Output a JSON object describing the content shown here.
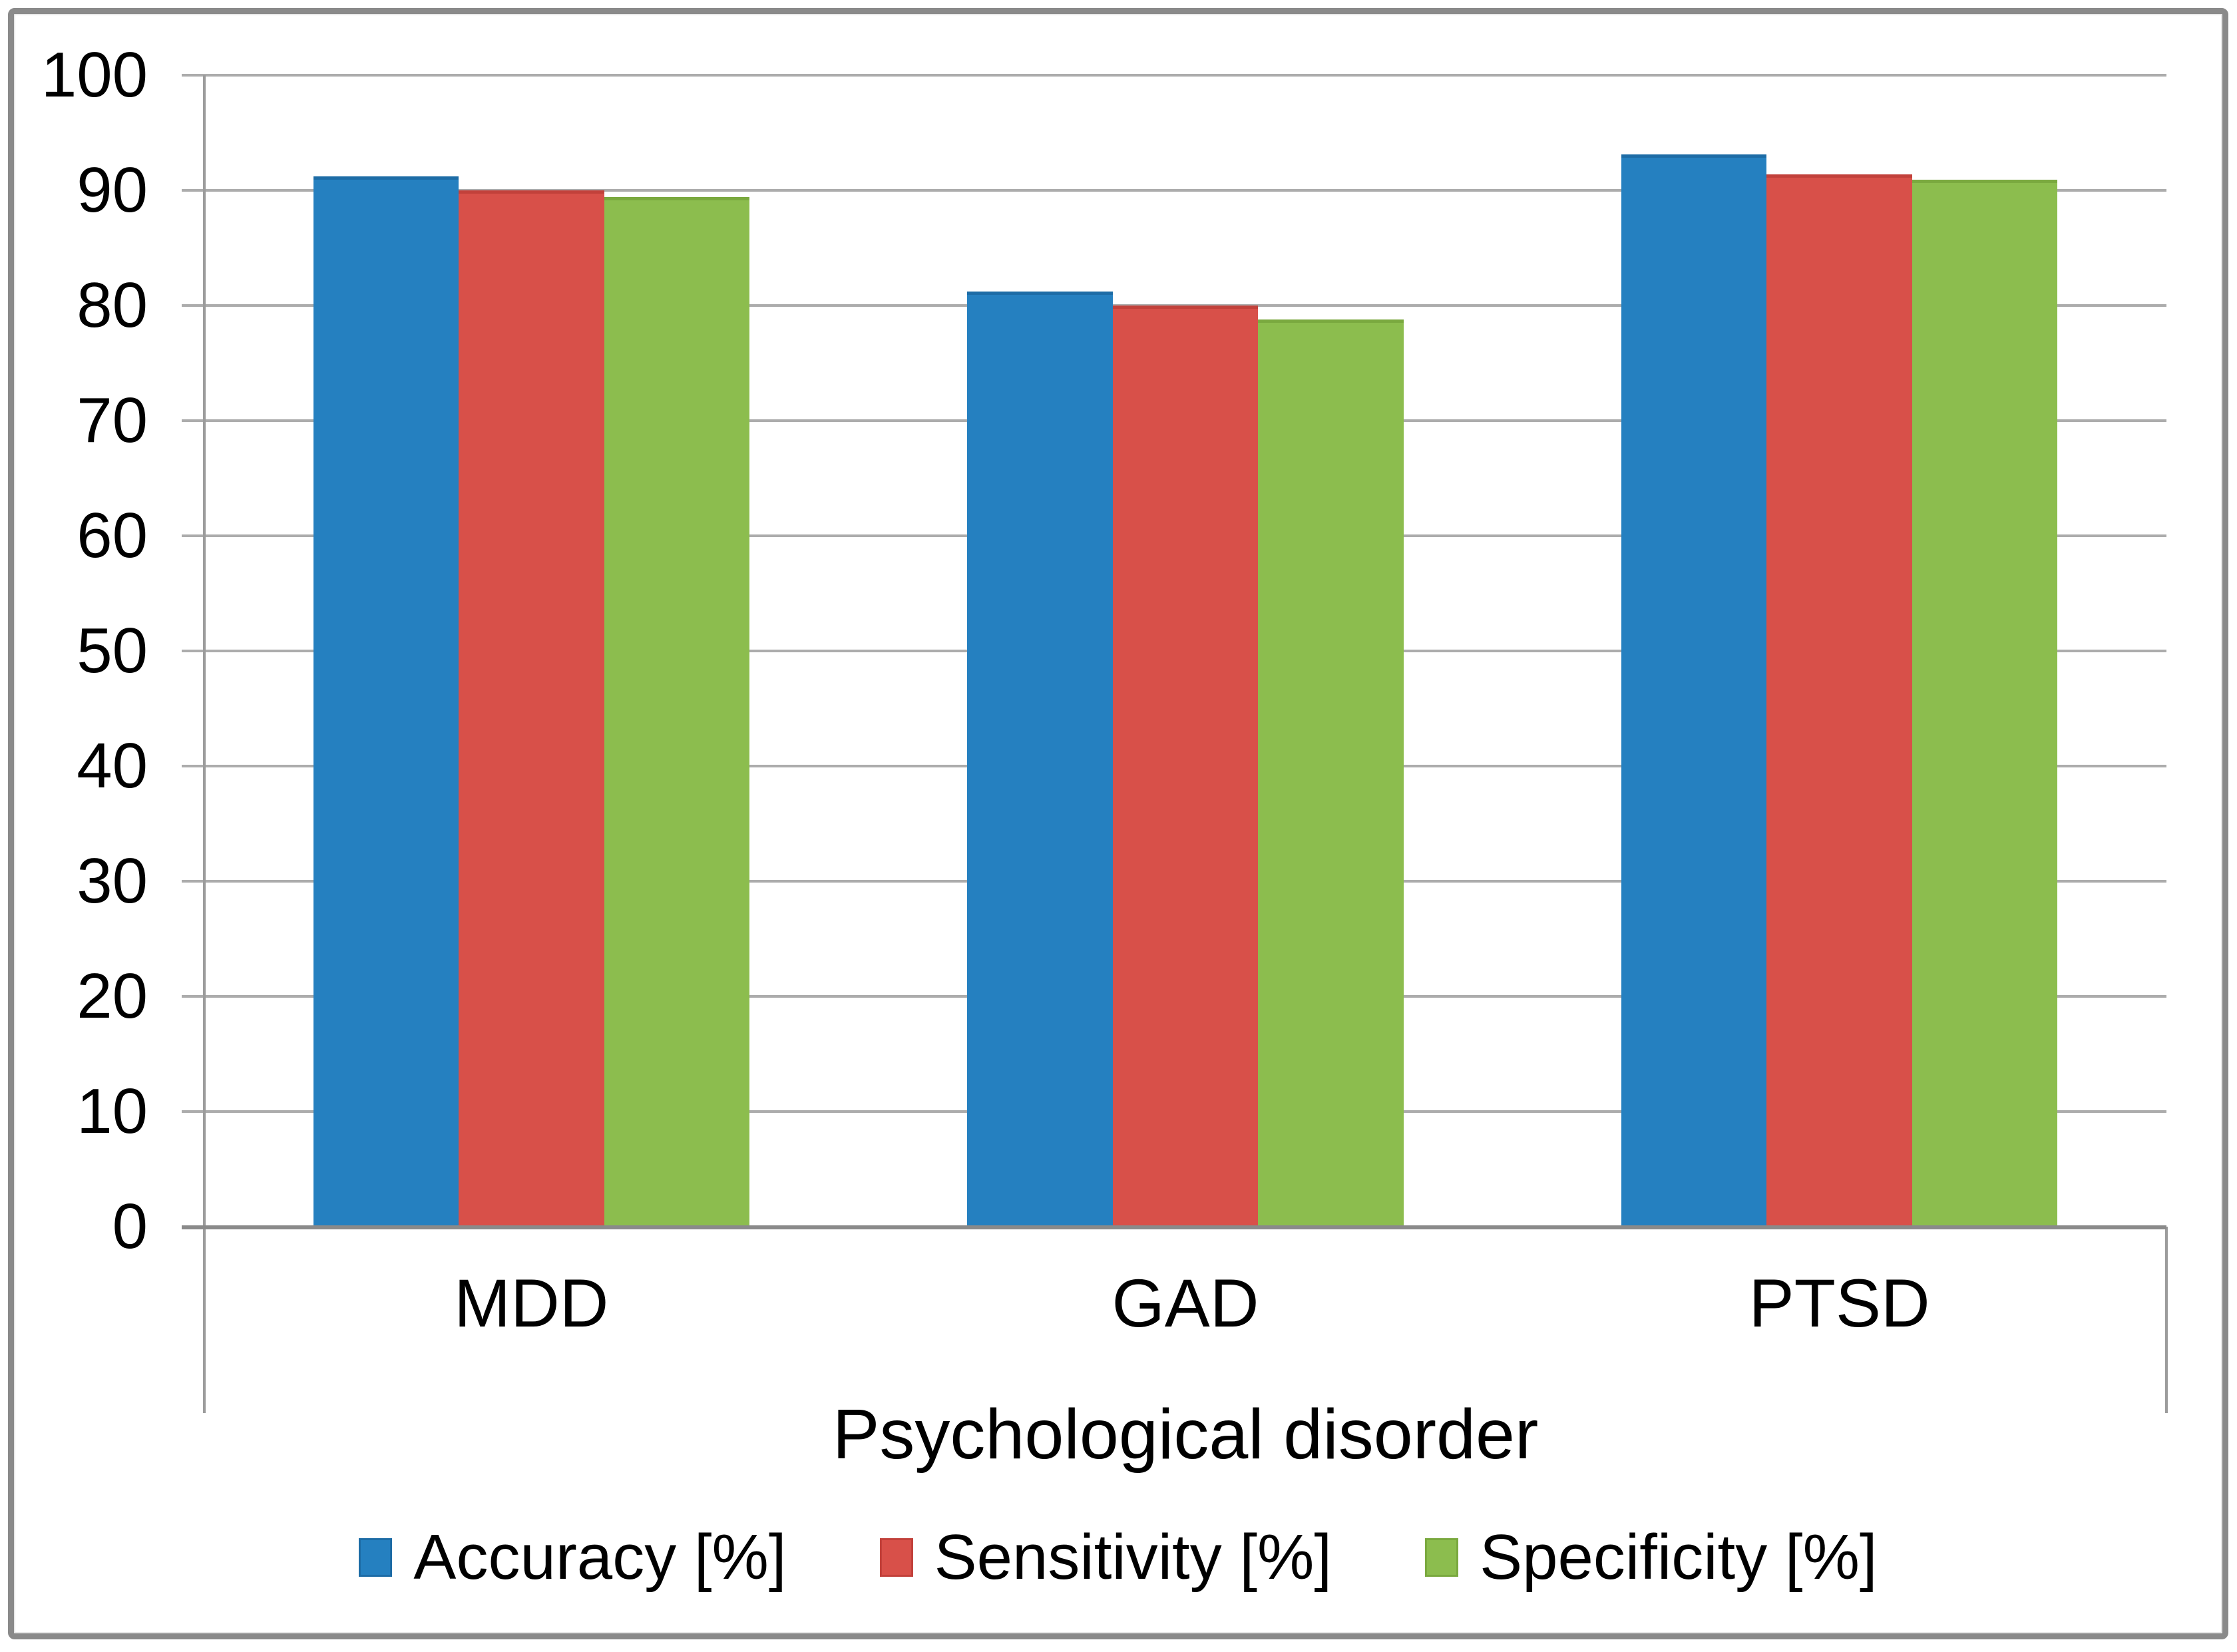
{
  "chart_data": {
    "type": "bar",
    "title": "",
    "xlabel": "Psychological disorder",
    "ylabel": "",
    "categories": [
      "MDD",
      "GAD",
      "PTSD"
    ],
    "series": [
      {
        "name": "Accuracy [%]",
        "color": "#2580c0",
        "edge_color": "#1d6ca6",
        "values": [
          91.2,
          81.2,
          93.1
        ]
      },
      {
        "name": "Sensitivity [%]",
        "color": "#d85049",
        "edge_color": "#c2413b",
        "values": [
          90.0,
          80.0,
          91.4
        ]
      },
      {
        "name": "Specificity [%]",
        "color": "#8cbd4e",
        "edge_color": "#7aa93f",
        "values": [
          89.4,
          78.8,
          90.9
        ]
      }
    ],
    "ylim": [
      0,
      100
    ],
    "yticks": [
      0,
      10,
      20,
      30,
      40,
      50,
      60,
      70,
      80,
      90,
      100
    ],
    "grid": true,
    "legend_position": "bottom",
    "gap_width_ratio": 1.5,
    "colors": {
      "gridline": "#acacac",
      "axis_line": "#9c9c9c",
      "baseline": "#8a8a8a",
      "frame_border": "#8a8a8a",
      "text": "#000000",
      "background": "#ffffff"
    }
  }
}
